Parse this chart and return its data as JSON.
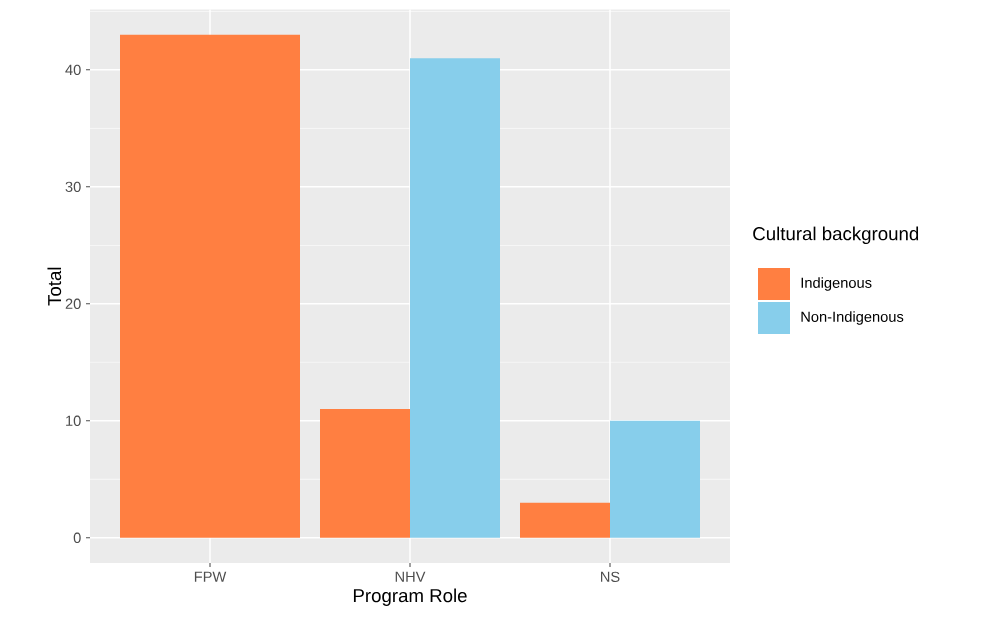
{
  "chart_data": {
    "type": "bar",
    "xlabel": "Program Role",
    "ylabel": "Total",
    "legend_title": "Cultural background",
    "categories": [
      "FPW",
      "NHV",
      "NS"
    ],
    "series": [
      {
        "name": "Indigenous",
        "color": "#ff7f41",
        "values": [
          43,
          11,
          3
        ]
      },
      {
        "name": "Non-Indigenous",
        "color": "#87ceeb",
        "values": [
          null,
          41,
          10
        ]
      }
    ],
    "ylim": [
      -2.15,
      45.15
    ],
    "yticks": [
      0,
      10,
      20,
      30,
      40
    ],
    "grid": true,
    "legend": "right"
  }
}
